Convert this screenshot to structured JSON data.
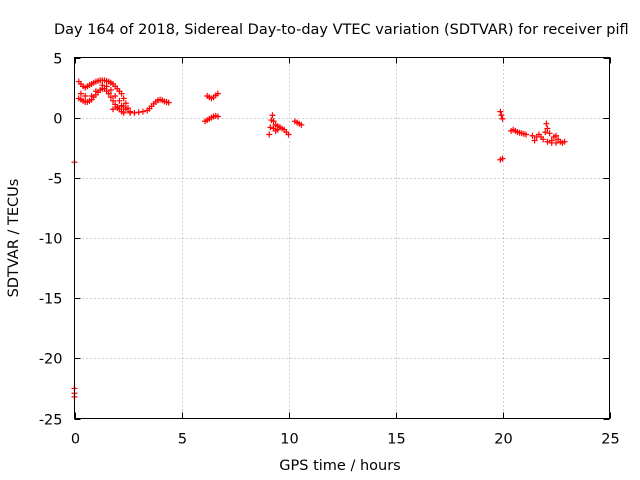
{
  "chart_data": {
    "type": "scatter",
    "title": "Day 164 of 2018, Sidereal Day-to-day VTEC variation (SDTVAR) for receiver pifl",
    "xlabel": "GPS time / hours",
    "ylabel": "SDTVAR / TECUs",
    "xlim": [
      0,
      25
    ],
    "ylim": [
      -25,
      5
    ],
    "xticks": [
      0,
      5,
      10,
      15,
      20,
      25
    ],
    "yticks": [
      -25,
      -20,
      -15,
      -10,
      -5,
      0,
      5
    ],
    "grid": true,
    "marker": "+",
    "series_color": "#ff0000",
    "series": [
      {
        "name": "SDTVAR",
        "points": [
          [
            0.0,
            -3.7
          ],
          [
            0.0,
            -22.5
          ],
          [
            0.0,
            -22.9
          ],
          [
            0.0,
            -23.2
          ],
          [
            0.2,
            3.0
          ],
          [
            0.3,
            2.8
          ],
          [
            0.4,
            2.6
          ],
          [
            0.5,
            2.5
          ],
          [
            0.6,
            2.6
          ],
          [
            0.7,
            2.7
          ],
          [
            0.8,
            2.8
          ],
          [
            0.9,
            2.9
          ],
          [
            1.0,
            3.0
          ],
          [
            1.1,
            3.05
          ],
          [
            1.2,
            3.1
          ],
          [
            1.3,
            3.1
          ],
          [
            1.4,
            3.1
          ],
          [
            1.5,
            3.05
          ],
          [
            1.6,
            3.0
          ],
          [
            1.7,
            2.9
          ],
          [
            1.8,
            2.8
          ],
          [
            1.9,
            2.6
          ],
          [
            2.0,
            2.4
          ],
          [
            2.1,
            2.2
          ],
          [
            2.2,
            2.0
          ],
          [
            2.3,
            1.6
          ],
          [
            2.4,
            1.2
          ],
          [
            2.5,
            0.8
          ],
          [
            2.6,
            0.5
          ],
          [
            0.2,
            1.6
          ],
          [
            0.3,
            1.5
          ],
          [
            0.4,
            1.4
          ],
          [
            0.5,
            1.3
          ],
          [
            0.6,
            1.3
          ],
          [
            0.7,
            1.4
          ],
          [
            0.8,
            1.5
          ],
          [
            0.9,
            1.7
          ],
          [
            1.0,
            1.9
          ],
          [
            1.1,
            2.1
          ],
          [
            1.2,
            2.3
          ],
          [
            1.3,
            2.4
          ],
          [
            1.4,
            2.4
          ],
          [
            1.5,
            2.2
          ],
          [
            1.6,
            2.0
          ],
          [
            1.7,
            1.7
          ],
          [
            1.8,
            1.4
          ],
          [
            1.9,
            1.1
          ],
          [
            2.0,
            0.9
          ],
          [
            2.1,
            0.7
          ],
          [
            2.2,
            0.5
          ],
          [
            2.3,
            0.4
          ],
          [
            0.3,
            2.0
          ],
          [
            0.5,
            1.8
          ],
          [
            0.8,
            1.8
          ],
          [
            1.0,
            2.2
          ],
          [
            1.3,
            2.7
          ],
          [
            1.5,
            2.6
          ],
          [
            1.7,
            2.3
          ],
          [
            1.9,
            1.8
          ],
          [
            2.1,
            1.4
          ],
          [
            2.3,
            0.9
          ],
          [
            1.8,
            0.7
          ],
          [
            2.0,
            0.8
          ],
          [
            2.2,
            1.0
          ],
          [
            2.4,
            0.7
          ],
          [
            2.6,
            0.4
          ],
          [
            2.8,
            0.4
          ],
          [
            3.0,
            0.45
          ],
          [
            3.2,
            0.5
          ],
          [
            3.4,
            0.6
          ],
          [
            3.5,
            0.75
          ],
          [
            3.6,
            0.95
          ],
          [
            3.7,
            1.15
          ],
          [
            3.8,
            1.3
          ],
          [
            3.9,
            1.45
          ],
          [
            4.0,
            1.5
          ],
          [
            4.1,
            1.45
          ],
          [
            4.2,
            1.35
          ],
          [
            4.3,
            1.3
          ],
          [
            4.4,
            1.25
          ],
          [
            6.2,
            1.8
          ],
          [
            6.3,
            1.7
          ],
          [
            6.4,
            1.6
          ],
          [
            6.5,
            1.7
          ],
          [
            6.6,
            1.85
          ],
          [
            6.7,
            2.0
          ],
          [
            6.1,
            -0.3
          ],
          [
            6.2,
            -0.2
          ],
          [
            6.3,
            -0.1
          ],
          [
            6.4,
            0.0
          ],
          [
            6.5,
            0.1
          ],
          [
            6.6,
            0.15
          ],
          [
            6.7,
            0.1
          ],
          [
            9.1,
            -1.4
          ],
          [
            9.15,
            -0.8
          ],
          [
            9.2,
            -0.2
          ],
          [
            9.25,
            0.2
          ],
          [
            9.3,
            -0.3
          ],
          [
            9.4,
            -0.6
          ],
          [
            9.5,
            -0.7
          ],
          [
            9.6,
            -0.8
          ],
          [
            9.7,
            -0.9
          ],
          [
            9.8,
            -1.0
          ],
          [
            9.9,
            -1.2
          ],
          [
            10.0,
            -1.4
          ],
          [
            9.3,
            -0.9
          ],
          [
            9.4,
            -1.1
          ],
          [
            9.5,
            -1.0
          ],
          [
            10.3,
            -0.3
          ],
          [
            10.4,
            -0.4
          ],
          [
            10.5,
            -0.5
          ],
          [
            10.6,
            -0.6
          ],
          [
            19.9,
            0.5
          ],
          [
            19.95,
            0.2
          ],
          [
            20.0,
            -0.1
          ],
          [
            19.9,
            -3.5
          ],
          [
            20.0,
            -3.4
          ],
          [
            20.4,
            -1.1
          ],
          [
            20.5,
            -1.0
          ],
          [
            20.6,
            -1.1
          ],
          [
            20.7,
            -1.2
          ],
          [
            20.8,
            -1.25
          ],
          [
            20.9,
            -1.3
          ],
          [
            21.0,
            -1.35
          ],
          [
            21.1,
            -1.4
          ],
          [
            21.4,
            -1.5
          ],
          [
            21.5,
            -1.9
          ],
          [
            21.6,
            -1.6
          ],
          [
            21.7,
            -1.4
          ],
          [
            21.8,
            -1.6
          ],
          [
            21.9,
            -1.8
          ],
          [
            22.0,
            -1.2
          ],
          [
            22.05,
            -0.5
          ],
          [
            22.1,
            -0.9
          ],
          [
            22.2,
            -1.3
          ],
          [
            22.3,
            -1.9
          ],
          [
            22.4,
            -1.6
          ],
          [
            22.5,
            -1.5
          ],
          [
            22.6,
            -1.8
          ],
          [
            22.7,
            -2.0
          ],
          [
            22.8,
            -2.1
          ],
          [
            22.9,
            -2.0
          ],
          [
            22.1,
            -2.0
          ],
          [
            22.3,
            -2.1
          ],
          [
            22.5,
            -2.1
          ]
        ]
      }
    ]
  }
}
